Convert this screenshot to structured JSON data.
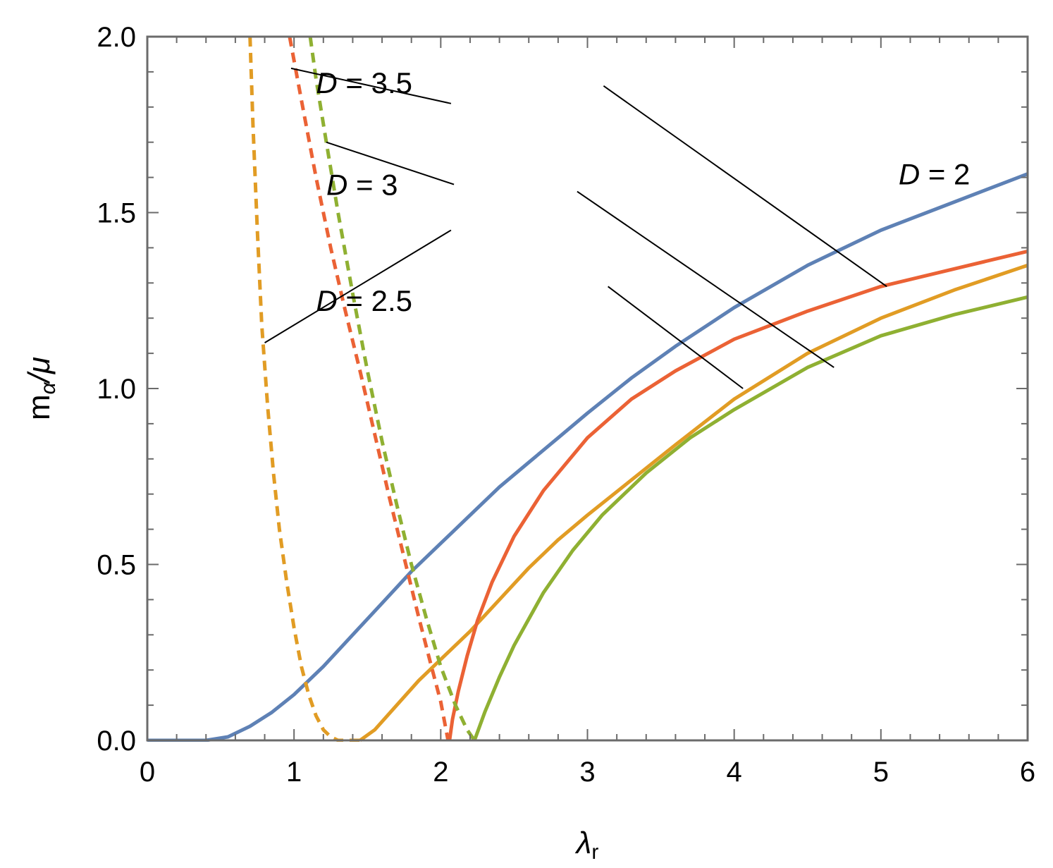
{
  "chart_data": {
    "type": "line",
    "title": "",
    "xlabel": "λ",
    "xlabel_sub": "r",
    "ylabel": "m",
    "ylabel_sub": "α",
    "ylabel_tail": "/μ",
    "xlim": [
      0,
      6
    ],
    "ylim": [
      0,
      2
    ],
    "grid": false,
    "x_ticks": [
      "0",
      "1",
      "2",
      "3",
      "4",
      "5",
      "6"
    ],
    "y_ticks": [
      "0.0",
      "0.5",
      "1.0",
      "1.5",
      "2.0"
    ],
    "colors": {
      "blue": "#5e81b5",
      "orange": "#e19c24",
      "red": "#eb6235",
      "green": "#8fb032"
    },
    "series": [
      {
        "color": "#5e81b5",
        "style": "solid",
        "x": [
          0,
          0.4,
          0.55,
          0.7,
          0.85,
          1.0,
          1.2,
          1.4,
          1.6,
          1.8,
          2.0,
          2.2,
          2.4,
          2.6,
          2.8,
          3.0,
          3.3,
          3.6,
          4.0,
          4.5,
          5.0,
          5.5,
          6.0
        ],
        "y": [
          0,
          0.0,
          0.01,
          0.04,
          0.08,
          0.13,
          0.21,
          0.3,
          0.39,
          0.48,
          0.56,
          0.64,
          0.72,
          0.79,
          0.86,
          0.93,
          1.03,
          1.12,
          1.23,
          1.35,
          1.45,
          1.53,
          1.61
        ]
      },
      {
        "color": "#e19c24",
        "style": "solid",
        "x": [
          1.45,
          1.55,
          1.7,
          1.85,
          2.0,
          2.2,
          2.4,
          2.6,
          2.8,
          3.0,
          3.3,
          3.6,
          4.0,
          4.5,
          5.0,
          5.5,
          6.0
        ],
        "y": [
          0.0,
          0.03,
          0.1,
          0.17,
          0.23,
          0.31,
          0.4,
          0.49,
          0.57,
          0.64,
          0.74,
          0.84,
          0.97,
          1.1,
          1.2,
          1.28,
          1.35
        ]
      },
      {
        "color": "#eb6235",
        "style": "solid",
        "x": [
          2.06,
          2.08,
          2.12,
          2.18,
          2.25,
          2.35,
          2.5,
          2.7,
          3.0,
          3.3,
          3.6,
          4.0,
          4.5,
          5.0,
          5.5,
          6.0
        ],
        "y": [
          0.0,
          0.06,
          0.14,
          0.24,
          0.34,
          0.45,
          0.58,
          0.71,
          0.86,
          0.97,
          1.05,
          1.14,
          1.22,
          1.29,
          1.34,
          1.39
        ]
      },
      {
        "color": "#8fb032",
        "style": "solid",
        "x": [
          2.23,
          2.3,
          2.4,
          2.5,
          2.7,
          2.9,
          3.1,
          3.4,
          3.7,
          4.0,
          4.5,
          5.0,
          5.5,
          6.0
        ],
        "y": [
          0.0,
          0.08,
          0.18,
          0.27,
          0.42,
          0.54,
          0.64,
          0.76,
          0.86,
          0.94,
          1.06,
          1.15,
          1.21,
          1.26
        ]
      },
      {
        "color": "#e19c24",
        "style": "dashed",
        "x": [
          0.7,
          0.72,
          0.75,
          0.78,
          0.82,
          0.86,
          0.9,
          0.95,
          1.0,
          1.05,
          1.1,
          1.15,
          1.2,
          1.25,
          1.3,
          1.35,
          1.4,
          1.45
        ],
        "y": [
          2.0,
          1.75,
          1.45,
          1.18,
          0.95,
          0.76,
          0.6,
          0.45,
          0.32,
          0.21,
          0.13,
          0.07,
          0.03,
          0.01,
          0.0,
          0.0,
          0.0,
          0.0
        ]
      },
      {
        "color": "#eb6235",
        "style": "dashed",
        "x": [
          0.97,
          1.05,
          1.15,
          1.25,
          1.35,
          1.45,
          1.55,
          1.65,
          1.75,
          1.85,
          1.93,
          2.0,
          2.05
        ],
        "y": [
          2.0,
          1.82,
          1.6,
          1.4,
          1.22,
          1.05,
          0.87,
          0.69,
          0.52,
          0.35,
          0.22,
          0.11,
          0.0
        ]
      },
      {
        "color": "#8fb032",
        "style": "dashed",
        "x": [
          1.11,
          1.15,
          1.22,
          1.3,
          1.4,
          1.5,
          1.6,
          1.7,
          1.8,
          1.9,
          2.0,
          2.1,
          2.18,
          2.23
        ],
        "y": [
          2.0,
          1.88,
          1.7,
          1.5,
          1.27,
          1.05,
          0.85,
          0.67,
          0.5,
          0.35,
          0.21,
          0.1,
          0.03,
          0.0
        ]
      }
    ],
    "annotations": [
      {
        "label": "D = 3.5",
        "text": [
          1.15,
          1.84
        ],
        "line": [
          [
            0.98,
            1.91
          ],
          [
            2.07,
            1.81
          ]
        ],
        "line2": [
          [
            3.11,
            1.86
          ],
          [
            5.04,
            1.29
          ]
        ]
      },
      {
        "label": "D = 3",
        "text": [
          1.22,
          1.55
        ],
        "line": [
          [
            1.22,
            1.7
          ],
          [
            2.09,
            1.58
          ]
        ],
        "line2": [
          [
            2.93,
            1.56
          ],
          [
            4.68,
            1.06
          ]
        ]
      },
      {
        "label": "D = 2.5",
        "text": [
          1.15,
          1.22
        ],
        "line": [
          [
            0.8,
            1.13
          ],
          [
            2.07,
            1.45
          ]
        ],
        "line2": [
          [
            3.14,
            1.29
          ],
          [
            4.06,
            1.0
          ]
        ]
      },
      {
        "label": "D = 2",
        "text": [
          5.12,
          1.58
        ]
      }
    ]
  }
}
